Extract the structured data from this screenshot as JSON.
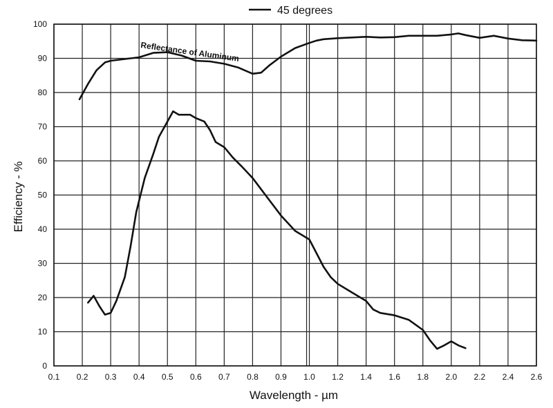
{
  "chart_data": {
    "type": "line",
    "xlabel": "Wavelength - µm",
    "ylabel": "Efficiency - %",
    "ylim": [
      0,
      100
    ],
    "y_ticks": [
      0,
      10,
      20,
      30,
      40,
      50,
      60,
      70,
      80,
      90,
      100
    ],
    "x_ticks": [
      {
        "v": 0.1,
        "label": "0.1"
      },
      {
        "v": 0.2,
        "label": "0.2"
      },
      {
        "v": 0.3,
        "label": "0.3"
      },
      {
        "v": 0.4,
        "label": "0.4"
      },
      {
        "v": 0.5,
        "label": "0.5"
      },
      {
        "v": 0.6,
        "label": "0.6"
      },
      {
        "v": 0.7,
        "label": "0.7"
      },
      {
        "v": 0.8,
        "label": "0.8"
      },
      {
        "v": 0.9,
        "label": "0.9"
      },
      {
        "v": 1.0,
        "label": "1.0"
      },
      {
        "v": 1.2,
        "label": "1.2"
      },
      {
        "v": 1.4,
        "label": "1.4"
      },
      {
        "v": 1.6,
        "label": "1.6"
      },
      {
        "v": 1.8,
        "label": "1.8"
      },
      {
        "v": 2.0,
        "label": "2.0"
      },
      {
        "v": 2.2,
        "label": "2.2"
      },
      {
        "v": 2.4,
        "label": "2.4"
      },
      {
        "v": 2.6,
        "label": "2.6"
      }
    ],
    "grid": true,
    "legend": {
      "position": "top-center",
      "entries": [
        "45 degrees"
      ]
    },
    "annotations": [
      "Reflectance of Aluminum"
    ],
    "series": [
      {
        "name": "45 degrees",
        "color": "#111111",
        "points": [
          [
            0.22,
            18.5
          ],
          [
            0.24,
            20.5
          ],
          [
            0.26,
            17.5
          ],
          [
            0.28,
            15.0
          ],
          [
            0.3,
            15.5
          ],
          [
            0.32,
            19.0
          ],
          [
            0.35,
            26.0
          ],
          [
            0.37,
            35.0
          ],
          [
            0.39,
            45.0
          ],
          [
            0.42,
            55.0
          ],
          [
            0.45,
            62.0
          ],
          [
            0.47,
            67.0
          ],
          [
            0.5,
            71.5
          ],
          [
            0.52,
            74.5
          ],
          [
            0.54,
            73.5
          ],
          [
            0.56,
            73.5
          ],
          [
            0.58,
            73.5
          ],
          [
            0.6,
            72.5
          ],
          [
            0.63,
            71.5
          ],
          [
            0.65,
            69.0
          ],
          [
            0.67,
            65.5
          ],
          [
            0.7,
            64.0
          ],
          [
            0.73,
            61.0
          ],
          [
            0.76,
            58.5
          ],
          [
            0.8,
            55.0
          ],
          [
            0.85,
            49.5
          ],
          [
            0.9,
            44.0
          ],
          [
            0.95,
            39.5
          ],
          [
            1.0,
            37.0
          ],
          [
            1.05,
            33.0
          ],
          [
            1.1,
            29.0
          ],
          [
            1.15,
            26.0
          ],
          [
            1.2,
            24.0
          ],
          [
            1.3,
            21.5
          ],
          [
            1.4,
            19.0
          ],
          [
            1.45,
            16.5
          ],
          [
            1.5,
            15.5
          ],
          [
            1.6,
            14.8
          ],
          [
            1.7,
            13.5
          ],
          [
            1.75,
            12.0
          ],
          [
            1.8,
            10.5
          ],
          [
            1.85,
            7.5
          ],
          [
            1.9,
            5.0
          ],
          [
            1.95,
            6.0
          ],
          [
            2.0,
            7.2
          ],
          [
            2.05,
            6.0
          ],
          [
            2.1,
            5.2
          ]
        ]
      },
      {
        "name": "Reflectance of Aluminum",
        "color": "#111111",
        "points": [
          [
            0.19,
            78.0
          ],
          [
            0.22,
            82.5
          ],
          [
            0.25,
            86.5
          ],
          [
            0.28,
            88.8
          ],
          [
            0.3,
            89.3
          ],
          [
            0.35,
            89.8
          ],
          [
            0.4,
            90.3
          ],
          [
            0.45,
            91.6
          ],
          [
            0.5,
            91.8
          ],
          [
            0.55,
            90.8
          ],
          [
            0.6,
            89.3
          ],
          [
            0.65,
            89.1
          ],
          [
            0.7,
            88.4
          ],
          [
            0.75,
            87.3
          ],
          [
            0.8,
            85.5
          ],
          [
            0.83,
            85.8
          ],
          [
            0.86,
            88.0
          ],
          [
            0.9,
            90.5
          ],
          [
            0.95,
            93.0
          ],
          [
            1.0,
            94.5
          ],
          [
            1.05,
            95.2
          ],
          [
            1.1,
            95.6
          ],
          [
            1.2,
            95.9
          ],
          [
            1.3,
            96.1
          ],
          [
            1.4,
            96.3
          ],
          [
            1.5,
            96.1
          ],
          [
            1.6,
            96.2
          ],
          [
            1.7,
            96.6
          ],
          [
            1.8,
            96.6
          ],
          [
            1.9,
            96.6
          ],
          [
            2.0,
            97.0
          ],
          [
            2.05,
            97.3
          ],
          [
            2.1,
            96.8
          ],
          [
            2.2,
            96.0
          ],
          [
            2.3,
            96.6
          ],
          [
            2.4,
            95.8
          ],
          [
            2.5,
            95.3
          ],
          [
            2.6,
            95.2
          ]
        ]
      }
    ]
  }
}
